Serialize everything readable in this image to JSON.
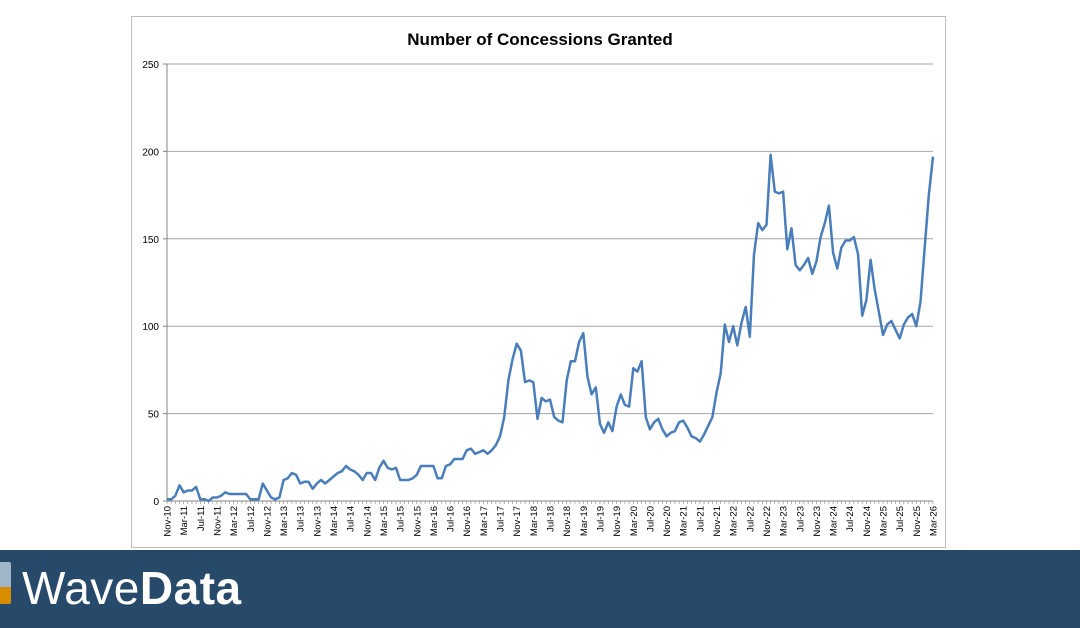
{
  "chart_data": {
    "type": "line",
    "title": "Number of Concessions Granted",
    "xlabel": "",
    "ylabel": "",
    "ylim": [
      0,
      250
    ],
    "y_ticks": [
      0,
      50,
      100,
      150,
      200,
      250
    ],
    "grid": "horizontal",
    "legend": "none",
    "line_color": "#4a7ebb",
    "x_tick_labels": [
      "Nov-10",
      "Mar-11",
      "Jul-11",
      "Nov-11",
      "Mar-12",
      "Jul-12",
      "Nov-12",
      "Mar-13",
      "Jul-13",
      "Nov-13",
      "Mar-14",
      "Jul-14",
      "Nov-14",
      "Mar-15",
      "Jul-15",
      "Nov-15",
      "Mar-16",
      "Jul-16",
      "Nov-16",
      "Mar-17",
      "Jul-17",
      "Nov-17",
      "Mar-18",
      "Jul-18",
      "Nov-18",
      "Mar-19",
      "Jul-19",
      "Nov-19",
      "Mar-20",
      "Jul-20",
      "Nov-20",
      "Mar-21",
      "Jul-21",
      "Nov-21",
      "Mar-22",
      "Jul-22",
      "Nov-22",
      "Mar-23",
      "Jul-23",
      "Nov-23",
      "Mar-24",
      "Jul-24",
      "Nov-24",
      "Mar-25",
      "Jul-25",
      "Nov-25",
      "Mar-26"
    ],
    "x": [
      "Nov-10",
      "Dec-10",
      "Jan-11",
      "Feb-11",
      "Mar-11",
      "Apr-11",
      "May-11",
      "Jun-11",
      "Jul-11",
      "Aug-11",
      "Sep-11",
      "Oct-11",
      "Nov-11",
      "Dec-11",
      "Jan-12",
      "Feb-12",
      "Mar-12",
      "Apr-12",
      "May-12",
      "Jun-12",
      "Jul-12",
      "Aug-12",
      "Sep-12",
      "Oct-12",
      "Nov-12",
      "Dec-12",
      "Jan-13",
      "Feb-13",
      "Mar-13",
      "Apr-13",
      "May-13",
      "Jun-13",
      "Jul-13",
      "Aug-13",
      "Sep-13",
      "Oct-13",
      "Nov-13",
      "Dec-13",
      "Jan-14",
      "Feb-14",
      "Mar-14",
      "Apr-14",
      "May-14",
      "Jun-14",
      "Jul-14",
      "Aug-14",
      "Sep-14",
      "Oct-14",
      "Nov-14",
      "Dec-14",
      "Jan-15",
      "Feb-15",
      "Mar-15",
      "Apr-15",
      "May-15",
      "Jun-15",
      "Jul-15",
      "Aug-15",
      "Sep-15",
      "Oct-15",
      "Nov-15",
      "Dec-15",
      "Jan-16",
      "Feb-16",
      "Mar-16",
      "Apr-16",
      "May-16",
      "Jun-16",
      "Jul-16",
      "Aug-16",
      "Sep-16",
      "Oct-16",
      "Nov-16",
      "Dec-16",
      "Jan-17",
      "Feb-17",
      "Mar-17",
      "Apr-17",
      "May-17",
      "Jun-17",
      "Jul-17",
      "Aug-17",
      "Sep-17",
      "Oct-17",
      "Nov-17",
      "Dec-17",
      "Jan-18",
      "Feb-18",
      "Mar-18",
      "Apr-18",
      "May-18",
      "Jun-18",
      "Jul-18",
      "Aug-18",
      "Sep-18",
      "Oct-18",
      "Nov-18",
      "Dec-18",
      "Jan-19",
      "Feb-19",
      "Mar-19",
      "Apr-19",
      "May-19",
      "Jun-19",
      "Jul-19",
      "Aug-19",
      "Sep-19",
      "Oct-19",
      "Nov-19",
      "Dec-19",
      "Jan-20",
      "Feb-20",
      "Mar-20",
      "Apr-20",
      "May-20",
      "Jun-20",
      "Jul-20",
      "Aug-20",
      "Sep-20",
      "Oct-20",
      "Nov-20",
      "Dec-20",
      "Jan-21",
      "Feb-21",
      "Mar-21",
      "Apr-21",
      "May-21",
      "Jun-21",
      "Jul-21",
      "Aug-21",
      "Sep-21",
      "Oct-21",
      "Nov-21",
      "Dec-21",
      "Jan-22",
      "Feb-22",
      "Mar-22",
      "Apr-22",
      "May-22",
      "Jun-22",
      "Jul-22",
      "Aug-22",
      "Sep-22",
      "Oct-22",
      "Nov-22",
      "Dec-22",
      "Jan-23",
      "Feb-23",
      "Mar-23",
      "Apr-23",
      "May-23",
      "Jun-23",
      "Jul-23",
      "Aug-23",
      "Sep-23",
      "Oct-23",
      "Nov-23",
      "Dec-23",
      "Jan-24",
      "Feb-24",
      "Mar-24",
      "Apr-24",
      "May-24",
      "Jun-24",
      "Jul-24",
      "Aug-24",
      "Sep-24",
      "Oct-24",
      "Nov-24",
      "Dec-24",
      "Jan-25",
      "Feb-25",
      "Mar-25",
      "Apr-25",
      "May-25",
      "Jun-25",
      "Jul-25",
      "Aug-25",
      "Sep-25",
      "Oct-25",
      "Nov-25",
      "Dec-25",
      "Jan-26",
      "Feb-26",
      "Mar-26"
    ],
    "values": [
      1,
      1,
      3,
      9,
      5,
      6,
      6,
      8,
      1,
      1,
      0,
      2,
      2,
      3,
      5,
      4,
      4,
      4,
      4,
      4,
      1,
      1,
      1,
      10,
      6,
      2,
      1,
      2,
      12,
      13,
      16,
      15,
      10,
      11,
      11,
      7,
      10,
      12,
      10,
      12,
      14,
      16,
      17,
      20,
      18,
      17,
      15,
      12,
      16,
      16,
      12,
      19,
      23,
      19,
      18,
      19,
      12,
      12,
      12,
      13,
      15,
      20,
      20,
      20,
      20,
      13,
      13,
      20,
      21,
      24,
      24,
      24,
      29,
      30,
      27,
      28,
      29,
      27,
      29,
      32,
      37,
      48,
      69,
      81,
      90,
      86,
      68,
      69,
      68,
      47,
      59,
      57,
      58,
      48,
      46,
      45,
      69,
      80,
      80,
      91,
      96,
      71,
      61,
      65,
      44,
      39,
      45,
      40,
      54,
      61,
      55,
      54,
      76,
      74,
      80,
      48,
      41,
      45,
      47,
      41,
      37,
      39,
      40,
      45,
      46,
      42,
      37,
      36,
      34,
      38,
      43,
      48,
      62,
      73,
      101,
      91,
      100,
      89,
      102,
      111,
      94,
      141,
      159,
      155,
      158,
      198,
      177,
      176,
      177,
      144,
      156,
      135,
      132,
      135,
      139,
      130,
      137,
      151,
      159,
      169,
      142,
      133,
      145,
      149,
      149,
      151,
      141,
      106,
      115,
      138,
      121,
      108,
      95,
      101,
      103,
      98,
      93,
      101,
      105,
      107,
      100,
      114,
      145,
      175,
      197
    ]
  },
  "footer": {
    "brand_light": "Wave",
    "brand_bold": "Data",
    "banner_color": "#27496a"
  }
}
